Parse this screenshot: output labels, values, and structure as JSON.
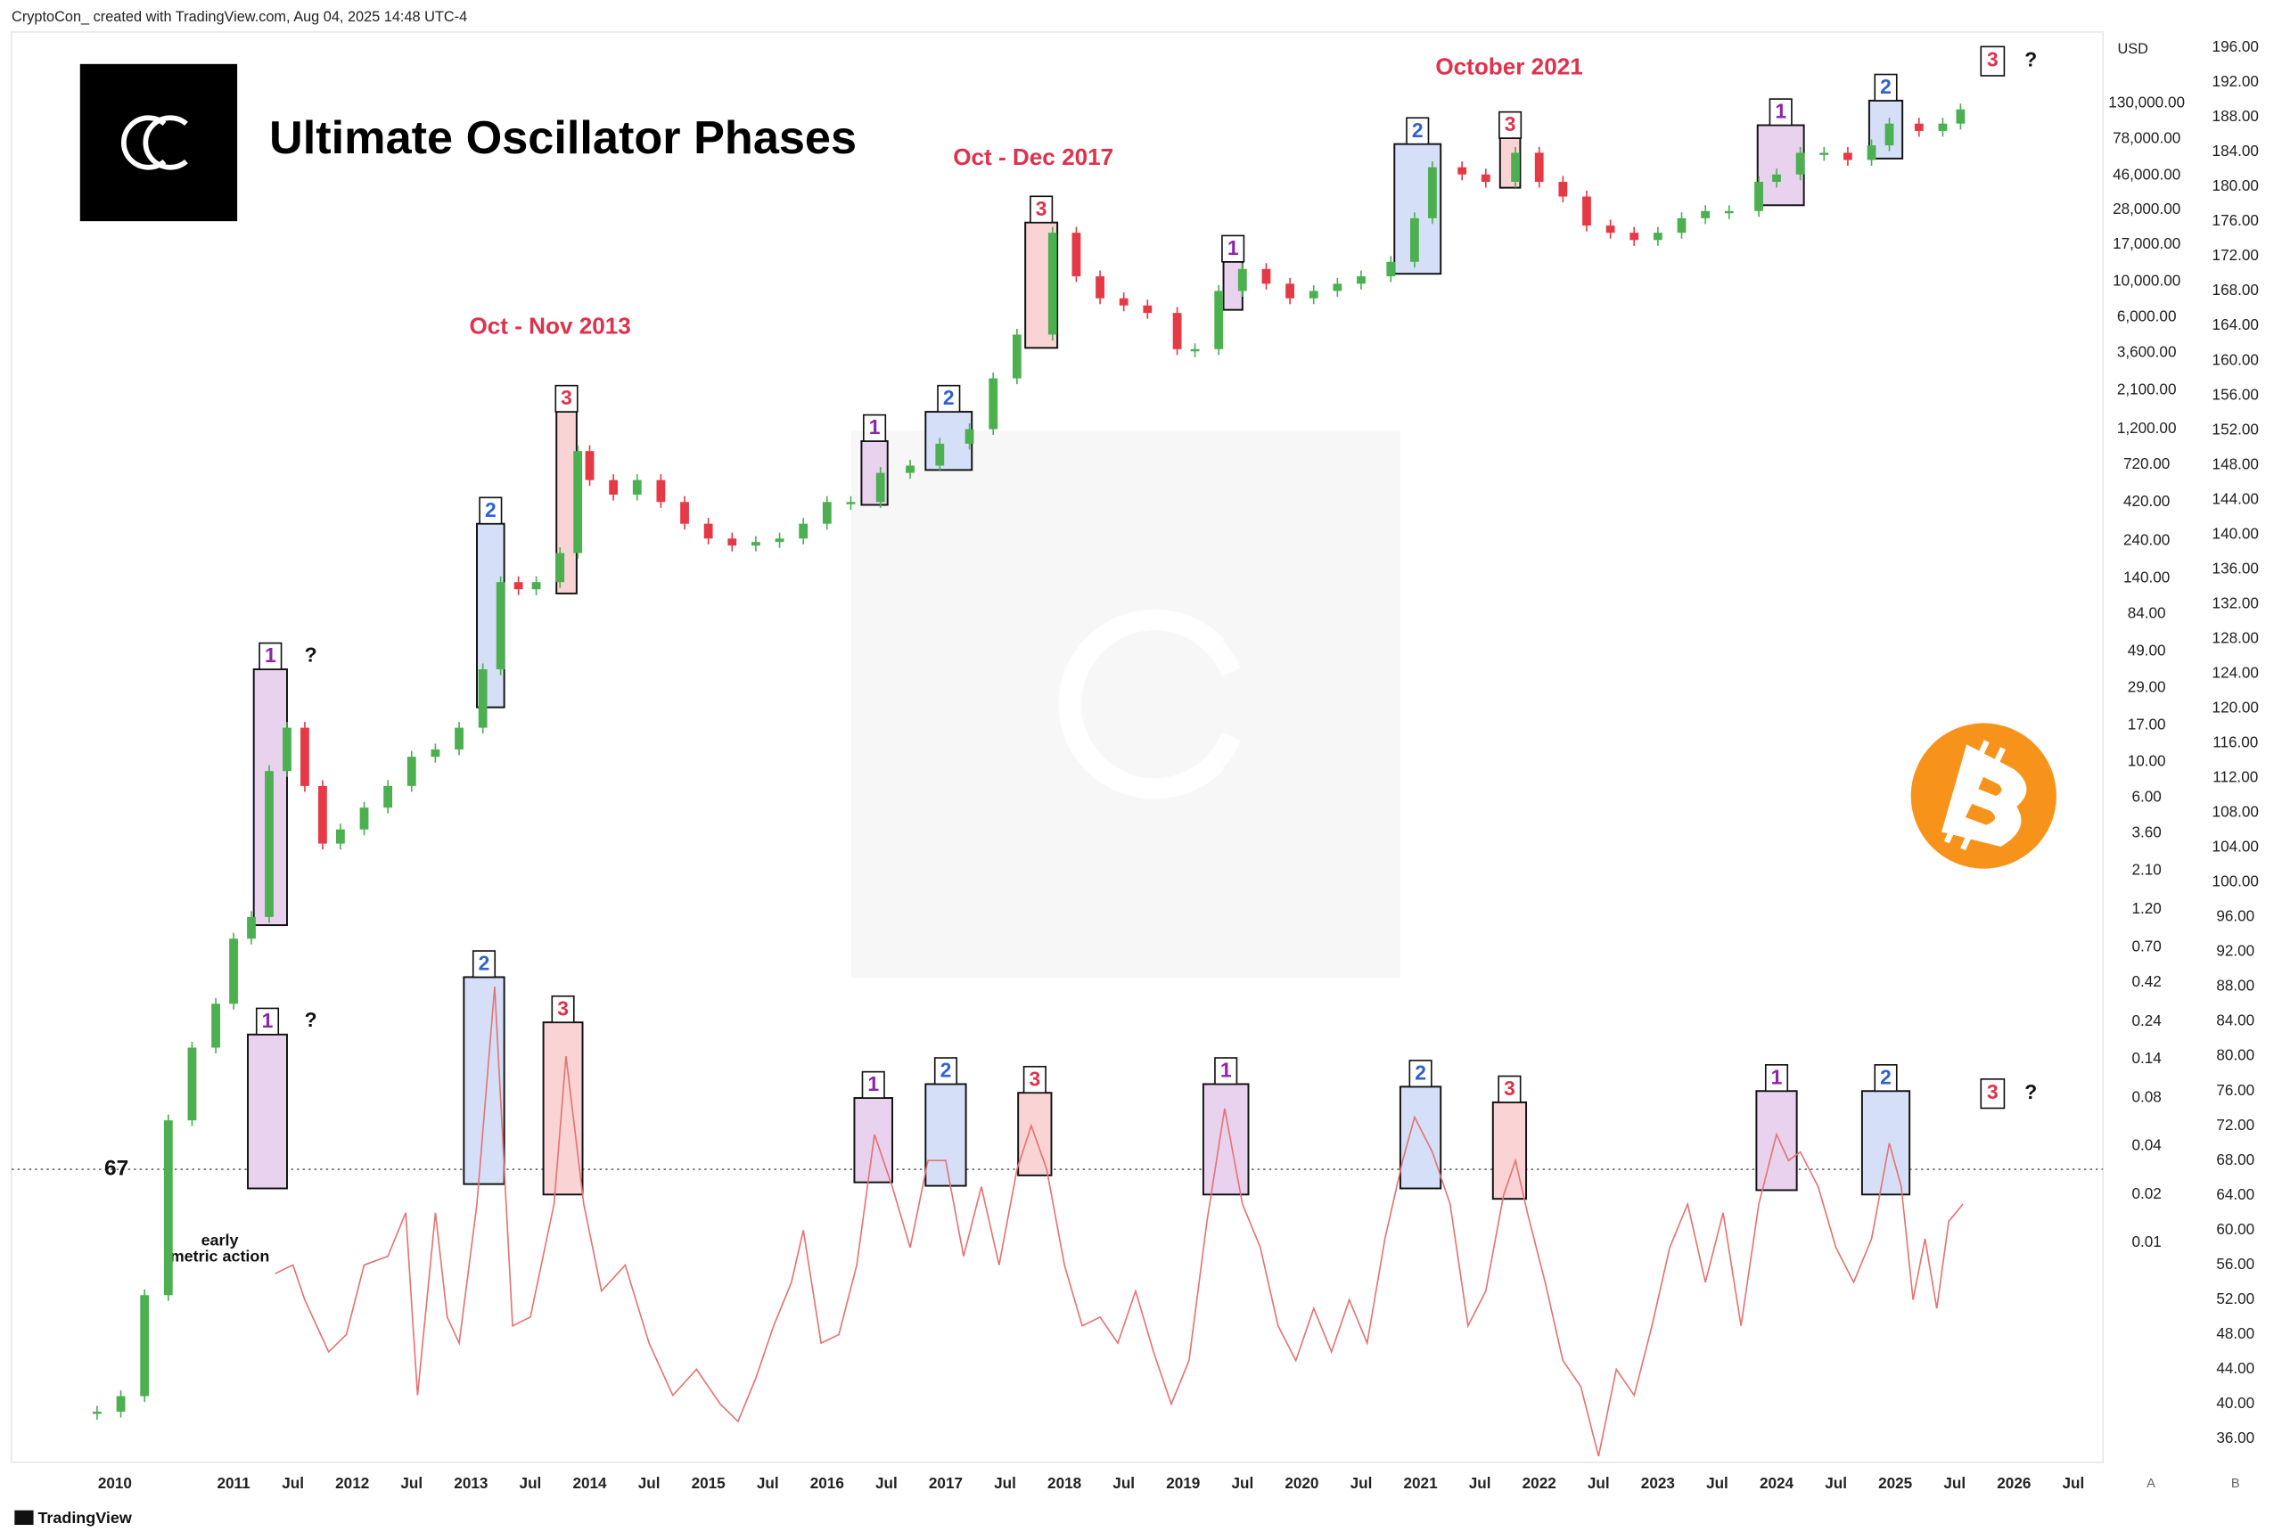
{
  "header": {
    "credit": "CryptoCon_ created with TradingView.com, Aug 04, 2025 14:48 UTC-4",
    "footer": "TradingView",
    "buttons": [
      "A",
      "B"
    ]
  },
  "annotations": {
    "titles": [
      "Oct - Nov 2013",
      "Oct - Dec 2017",
      "October 2021"
    ],
    "early": [
      "early",
      "metric action"
    ]
  },
  "chart_data": {
    "type": "candlestick",
    "title": "Ultimate Oscillator Phases",
    "currency": "USD",
    "log_scale": true,
    "up_color": "#4caf50",
    "down_color": "#e53946",
    "price": {
      "x": [
        2009.85,
        2010.05,
        2010.25,
        2010.45,
        2010.65,
        2010.85,
        2011.0,
        2011.15,
        2011.3,
        2011.45,
        2011.6,
        2011.75,
        2011.9,
        2012.1,
        2012.3,
        2012.5,
        2012.7,
        2012.9,
        2013.1,
        2013.25,
        2013.4,
        2013.55,
        2013.75,
        2013.9,
        2014.0,
        2014.2,
        2014.4,
        2014.6,
        2014.8,
        2015.0,
        2015.2,
        2015.4,
        2015.6,
        2015.8,
        2016.0,
        2016.2,
        2016.45,
        2016.7,
        2016.95,
        2017.2,
        2017.4,
        2017.6,
        2017.9,
        2018.1,
        2018.3,
        2018.5,
        2018.7,
        2018.95,
        2019.1,
        2019.3,
        2019.5,
        2019.7,
        2019.9,
        2020.1,
        2020.3,
        2020.5,
        2020.75,
        2020.95,
        2021.1,
        2021.35,
        2021.55,
        2021.8,
        2022.0,
        2022.2,
        2022.4,
        2022.6,
        2022.8,
        2023.0,
        2023.2,
        2023.4,
        2023.6,
        2023.85,
        2024.0,
        2024.2,
        2024.4,
        2024.6,
        2024.8,
        2024.95,
        2025.2,
        2025.4,
        2025.55
      ],
      "values": [
        0.00088,
        0.0011,
        0.0047,
        0.058,
        0.165,
        0.31,
        0.79,
        1.08,
        8.8,
        16.4,
        7.1,
        3.1,
        3.8,
        5.2,
        7.1,
        10.8,
        12,
        16.4,
        38,
        133,
        120,
        133,
        202,
        875,
        577,
        468,
        577,
        421,
        308,
        249,
        225,
        237,
        249,
        308,
        421,
        421,
        640,
        710,
        973,
        1200,
        2490,
        4670,
        20200,
        10800,
        7870,
        7100,
        6380,
        3790,
        3790,
        8750,
        12000,
        9710,
        7870,
        8750,
        9710,
        10800,
        13300,
        24900,
        51800,
        46700,
        42000,
        63800,
        42000,
        34000,
        22400,
        20200,
        18200,
        20200,
        24900,
        27600,
        27600,
        42000,
        46700,
        63800,
        63800,
        57500,
        71000,
        97000,
        87300,
        97000,
        119000
      ]
    },
    "oscillator": {
      "color": "#e57373",
      "axis": "y2",
      "x": [
        2011.35,
        2011.5,
        2011.6,
        2011.8,
        2011.95,
        2012.1,
        2012.3,
        2012.45,
        2012.55,
        2012.7,
        2012.8,
        2012.9,
        2013.05,
        2013.2,
        2013.35,
        2013.5,
        2013.7,
        2013.8,
        2013.95,
        2014.1,
        2014.3,
        2014.5,
        2014.7,
        2014.9,
        2015.1,
        2015.25,
        2015.4,
        2015.55,
        2015.7,
        2015.8,
        2015.95,
        2016.1,
        2016.25,
        2016.4,
        2016.55,
        2016.7,
        2016.85,
        2017.0,
        2017.15,
        2017.3,
        2017.45,
        2017.6,
        2017.72,
        2017.85,
        2018.0,
        2018.15,
        2018.3,
        2018.45,
        2018.6,
        2018.75,
        2018.9,
        2019.05,
        2019.2,
        2019.35,
        2019.5,
        2019.65,
        2019.8,
        2019.95,
        2020.1,
        2020.25,
        2020.4,
        2020.55,
        2020.7,
        2020.85,
        2020.95,
        2021.1,
        2021.25,
        2021.4,
        2021.55,
        2021.7,
        2021.8,
        2021.9,
        2022.05,
        2022.2,
        2022.35,
        2022.5,
        2022.65,
        2022.8,
        2022.95,
        2023.1,
        2023.25,
        2023.4,
        2023.55,
        2023.7,
        2023.85,
        2024.0,
        2024.1,
        2024.2,
        2024.35,
        2024.5,
        2024.65,
        2024.8,
        2024.95,
        2025.05,
        2025.15,
        2025.25,
        2025.35,
        2025.45,
        2025.57
      ],
      "values": [
        55,
        56,
        52,
        46,
        48,
        56,
        57,
        62,
        41,
        62,
        50,
        47,
        63,
        88,
        49,
        50,
        63,
        80,
        63,
        53,
        56,
        47,
        41,
        44,
        40,
        38,
        43,
        49,
        54,
        60,
        47,
        48,
        56,
        71,
        65,
        58,
        68,
        68,
        57,
        65,
        56,
        67,
        72,
        67,
        56,
        49,
        50,
        47,
        53,
        46,
        40,
        45,
        61,
        74,
        63,
        58,
        49,
        45,
        51,
        46,
        52,
        47,
        59,
        68,
        73,
        69,
        63,
        49,
        53,
        64,
        68,
        62,
        54,
        45,
        42,
        34,
        44,
        41,
        49,
        58,
        63,
        54,
        62,
        49,
        63,
        71,
        68,
        69,
        65,
        58,
        54,
        59,
        70,
        65,
        52,
        59,
        51,
        61,
        63
      ]
    },
    "threshold": 67,
    "phase_colors": {
      "1": {
        "fill": "#e8d2ee",
        "text": "#8e24aa"
      },
      "2": {
        "fill": "#d5e0f8",
        "text": "#2f62d0"
      },
      "3": {
        "fill": "#fad3d5",
        "text": "#e0314b"
      }
    },
    "phases": [
      {
        "label": "1",
        "pane": "price",
        "start": 2011.17,
        "end": 2011.45,
        "low": 0.96,
        "high": 38,
        "note": "?"
      },
      {
        "label": "2",
        "pane": "price",
        "start": 2013.05,
        "end": 2013.28,
        "low": 22,
        "high": 308
      },
      {
        "label": "3",
        "pane": "price",
        "start": 2013.72,
        "end": 2013.89,
        "low": 113,
        "high": 1540
      },
      {
        "label": "1",
        "pane": "price",
        "start": 2016.29,
        "end": 2016.51,
        "low": 404,
        "high": 1010
      },
      {
        "label": "2",
        "pane": "price",
        "start": 2016.83,
        "end": 2017.22,
        "low": 667,
        "high": 1540
      },
      {
        "label": "3",
        "pane": "price",
        "start": 2017.67,
        "end": 2017.94,
        "low": 3860,
        "high": 23400
      },
      {
        "label": "1",
        "pane": "price",
        "start": 2019.34,
        "end": 2019.5,
        "low": 6670,
        "high": 13300
      },
      {
        "label": "2",
        "pane": "price",
        "start": 2020.78,
        "end": 2021.17,
        "low": 11200,
        "high": 72300
      },
      {
        "label": "3",
        "pane": "price",
        "start": 2021.67,
        "end": 2021.84,
        "low": 38600,
        "high": 78700
      },
      {
        "label": "1",
        "pane": "price",
        "start": 2023.84,
        "end": 2024.23,
        "low": 30000,
        "high": 94800
      },
      {
        "label": "2",
        "pane": "price",
        "start": 2024.78,
        "end": 2025.06,
        "low": 58700,
        "high": 135000
      },
      {
        "label": "1",
        "pane": "oscillator",
        "start": 2011.12,
        "end": 2011.45,
        "low": 64.8,
        "high": 82.5,
        "note": "?"
      },
      {
        "label": "2",
        "pane": "oscillator",
        "start": 2012.94,
        "end": 2013.28,
        "low": 65.3,
        "high": 89.1
      },
      {
        "label": "3",
        "pane": "oscillator",
        "start": 2013.61,
        "end": 2013.94,
        "low": 64.1,
        "high": 83.9
      },
      {
        "label": "1",
        "pane": "oscillator",
        "start": 2016.23,
        "end": 2016.55,
        "low": 65.5,
        "high": 75.2
      },
      {
        "label": "2",
        "pane": "oscillator",
        "start": 2016.83,
        "end": 2017.17,
        "low": 65.1,
        "high": 76.8
      },
      {
        "label": "3",
        "pane": "oscillator",
        "start": 2017.61,
        "end": 2017.89,
        "low": 66.3,
        "high": 75.8
      },
      {
        "label": "1",
        "pane": "oscillator",
        "start": 2019.17,
        "end": 2019.55,
        "low": 64.1,
        "high": 76.8
      },
      {
        "label": "2",
        "pane": "oscillator",
        "start": 2020.83,
        "end": 2021.17,
        "low": 64.8,
        "high": 76.5
      },
      {
        "label": "3",
        "pane": "oscillator",
        "start": 2021.61,
        "end": 2021.89,
        "low": 63.6,
        "high": 74.7
      },
      {
        "label": "1",
        "pane": "oscillator",
        "start": 2023.83,
        "end": 2024.17,
        "low": 64.6,
        "high": 76.0
      },
      {
        "label": "2",
        "pane": "oscillator",
        "start": 2024.72,
        "end": 2025.12,
        "low": 64.1,
        "high": 76.0
      }
    ],
    "pending": [
      {
        "label": "3",
        "pane": "price",
        "x": 2025.82,
        "value": 238000,
        "note": "?"
      },
      {
        "label": "3",
        "pane": "oscillator",
        "x": 2025.82,
        "value": 75.7,
        "note": "?"
      }
    ],
    "ylim": [
      0.000425,
      340000
    ],
    "yticks": [
      0.01,
      0.02,
      0.04,
      0.08,
      0.14,
      0.24,
      0.42,
      {
        "value": 0.7,
        "label": "0.70"
      },
      {
        "value": 1.2,
        "label": "1.20"
      },
      {
        "value": 2.1,
        "label": "2.10"
      },
      {
        "value": 3.6,
        "label": "3.60"
      },
      {
        "value": 6,
        "label": "6.00"
      },
      {
        "value": 10,
        "label": "10.00"
      },
      {
        "value": 17,
        "label": "17.00"
      },
      {
        "value": 29,
        "label": "29.00"
      },
      {
        "value": 49,
        "label": "49.00"
      },
      {
        "value": 84,
        "label": "84.00"
      },
      {
        "value": 140,
        "label": "140.00"
      },
      {
        "value": 240,
        "label": "240.00"
      },
      {
        "value": 420,
        "label": "420.00"
      },
      {
        "value": 720,
        "label": "720.00"
      },
      {
        "value": 1200,
        "label": "1,200.00"
      },
      {
        "value": 2100,
        "label": "2,100.00"
      },
      {
        "value": 3600,
        "label": "3,600.00"
      },
      {
        "value": 6000,
        "label": "6,000.00"
      },
      {
        "value": 10000,
        "label": "10,000.00"
      },
      {
        "value": 17000,
        "label": "17,000.00"
      },
      {
        "value": 28000,
        "label": "28,000.00"
      },
      {
        "value": 46000,
        "label": "46,000.00"
      },
      {
        "value": 78000,
        "label": "78,000.00"
      },
      {
        "value": 130000,
        "label": "130,000.00"
      }
    ],
    "y2lim": [
      33.3,
      197.3
    ],
    "y2ticks": [
      {
        "value": 36,
        "label": "36.00"
      },
      {
        "value": 40,
        "label": "40.00"
      },
      {
        "value": 44,
        "label": "44.00"
      },
      {
        "value": 48,
        "label": "48.00"
      },
      {
        "value": 52,
        "label": "52.00"
      },
      {
        "value": 56,
        "label": "56.00"
      },
      {
        "value": 60,
        "label": "60.00"
      },
      {
        "value": 64,
        "label": "64.00"
      },
      {
        "value": 68,
        "label": "68.00"
      },
      {
        "value": 72,
        "label": "72.00"
      },
      {
        "value": 76,
        "label": "76.00"
      },
      {
        "value": 80,
        "label": "80.00"
      },
      {
        "value": 84,
        "label": "84.00"
      },
      {
        "value": 88,
        "label": "88.00"
      },
      {
        "value": 92,
        "label": "92.00"
      },
      {
        "value": 96,
        "label": "96.00"
      },
      {
        "value": 100,
        "label": "100.00"
      },
      {
        "value": 104,
        "label": "104.00"
      },
      {
        "value": 108,
        "label": "108.00"
      },
      {
        "value": 112,
        "label": "112.00"
      },
      {
        "value": 116,
        "label": "116.00"
      },
      {
        "value": 120,
        "label": "120.00"
      },
      {
        "value": 124,
        "label": "124.00"
      },
      {
        "value": 128,
        "label": "128.00"
      },
      {
        "value": 132,
        "label": "132.00"
      },
      {
        "value": 136,
        "label": "136.00"
      },
      {
        "value": 140,
        "label": "140.00"
      },
      {
        "value": 144,
        "label": "144.00"
      },
      {
        "value": 148,
        "label": "148.00"
      },
      {
        "value": 152,
        "label": "152.00"
      },
      {
        "value": 156,
        "label": "156.00"
      },
      {
        "value": 160,
        "label": "160.00"
      },
      {
        "value": 164,
        "label": "164.00"
      },
      {
        "value": 168,
        "label": "168.00"
      },
      {
        "value": 172,
        "label": "172.00"
      },
      {
        "value": 176,
        "label": "176.00"
      },
      {
        "value": 180,
        "label": "180.00"
      },
      {
        "value": 184,
        "label": "184.00"
      },
      {
        "value": 188,
        "label": "188.00"
      },
      {
        "value": 192,
        "label": "192.00"
      },
      {
        "value": 196,
        "label": "196.00"
      }
    ],
    "xlim": [
      2009.13,
      2026.75
    ],
    "xticks": [
      2010,
      2011,
      {
        "value": 2011.5,
        "label": "Jul"
      },
      2012,
      {
        "value": 2012.5,
        "label": "Jul"
      },
      2013,
      {
        "value": 2013.5,
        "label": "Jul"
      },
      2014,
      {
        "value": 2014.5,
        "label": "Jul"
      },
      2015,
      {
        "value": 2015.5,
        "label": "Jul"
      },
      2016,
      {
        "value": 2016.5,
        "label": "Jul"
      },
      2017,
      {
        "value": 2017.5,
        "label": "Jul"
      },
      2018,
      {
        "value": 2018.5,
        "label": "Jul"
      },
      2019,
      {
        "value": 2019.5,
        "label": "Jul"
      },
      2020,
      {
        "value": 2020.5,
        "label": "Jul"
      },
      2021,
      {
        "value": 2021.5,
        "label": "Jul"
      },
      2022,
      {
        "value": 2022.5,
        "label": "Jul"
      },
      2023,
      {
        "value": 2023.5,
        "label": "Jul"
      },
      2024,
      {
        "value": 2024.5,
        "label": "Jul"
      },
      2025,
      {
        "value": 2025.5,
        "label": "Jul"
      },
      2026,
      {
        "value": 2026.5,
        "label": "Jul"
      }
    ]
  }
}
